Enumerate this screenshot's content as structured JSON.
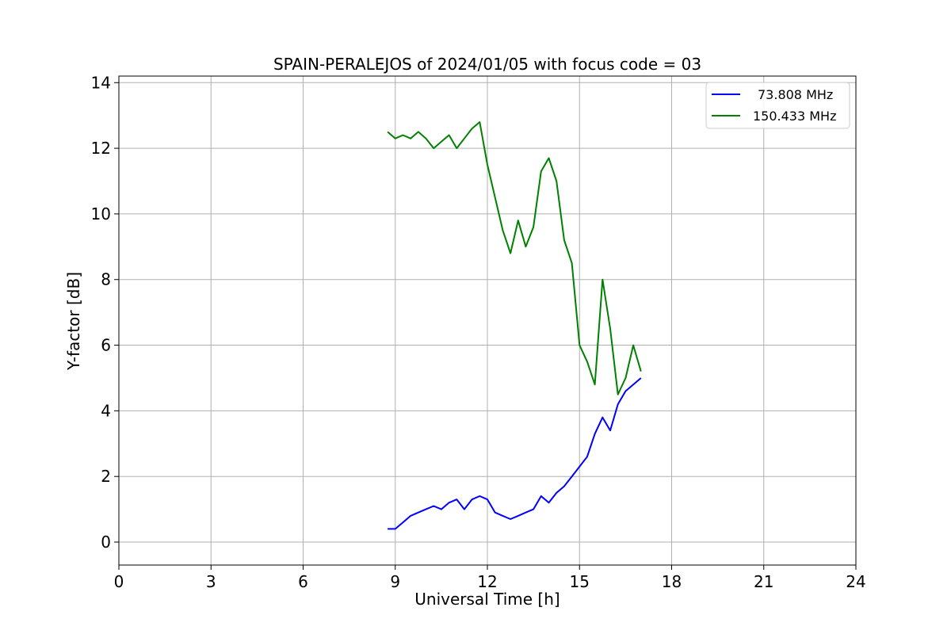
{
  "chart_data": {
    "type": "line",
    "title": "SPAIN-PERALEJOS of 2024/01/05 with focus code = 03",
    "xlabel": "Universal Time [h]",
    "ylabel": "Y-factor [dB]",
    "xlim": [
      0,
      24
    ],
    "ylim": [
      -0.7,
      14.2
    ],
    "xticks": [
      0,
      3,
      6,
      9,
      12,
      15,
      18,
      21,
      24
    ],
    "yticks": [
      0,
      2,
      4,
      6,
      8,
      10,
      12,
      14
    ],
    "grid": true,
    "legend_position": "top-right",
    "series": [
      {
        "name": "73.808 MHz",
        "color": "#0000ff",
        "x": [
          8.75,
          9.0,
          9.25,
          9.5,
          9.75,
          10.0,
          10.25,
          10.5,
          10.75,
          11.0,
          11.25,
          11.5,
          11.75,
          12.0,
          12.25,
          12.5,
          12.75,
          13.0,
          13.25,
          13.5,
          13.75,
          14.0,
          14.25,
          14.5,
          14.75,
          15.0,
          15.25,
          15.5,
          15.75,
          16.0,
          16.25,
          16.5,
          16.75,
          17.0
        ],
        "y": [
          0.4,
          0.4,
          0.6,
          0.8,
          0.9,
          1.0,
          1.1,
          1.0,
          1.2,
          1.3,
          1.0,
          1.3,
          1.4,
          1.3,
          0.9,
          0.8,
          0.7,
          0.8,
          0.9,
          1.0,
          1.4,
          1.2,
          1.5,
          1.7,
          2.0,
          2.3,
          2.6,
          3.3,
          3.8,
          3.4,
          4.2,
          4.6,
          4.8,
          5.0
        ]
      },
      {
        "name": "150.433 MHz",
        "color": "#008000",
        "x": [
          8.75,
          9.0,
          9.25,
          9.5,
          9.75,
          10.0,
          10.25,
          10.5,
          10.75,
          11.0,
          11.25,
          11.5,
          11.75,
          12.0,
          12.25,
          12.5,
          12.75,
          13.0,
          13.25,
          13.5,
          13.75,
          14.0,
          14.25,
          14.5,
          14.75,
          15.0,
          15.25,
          15.5,
          15.75,
          16.0,
          16.25,
          16.5,
          16.75,
          17.0
        ],
        "y": [
          12.5,
          12.3,
          12.4,
          12.3,
          12.5,
          12.3,
          12.0,
          12.2,
          12.4,
          12.0,
          12.3,
          12.6,
          12.8,
          11.5,
          10.5,
          9.5,
          8.8,
          9.8,
          9.0,
          9.6,
          11.3,
          11.7,
          11.0,
          9.2,
          8.5,
          6.0,
          5.5,
          4.8,
          8.0,
          6.5,
          4.5,
          5.0,
          6.0,
          5.2
        ]
      }
    ]
  }
}
